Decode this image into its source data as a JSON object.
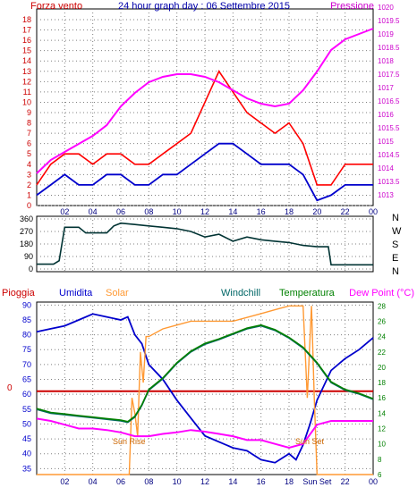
{
  "colors": {
    "wind": "#ff0000",
    "gust": "#0000cc",
    "pressure": "#ff00ff",
    "direction": "#003333",
    "rain": "#cc0000",
    "humidity": "#0000cc",
    "solar": "#ff9933",
    "windchill": "#006666",
    "temperature": "#008000",
    "dewpoint": "#ff00ff",
    "grid": "#808080"
  },
  "chart_data": [
    {
      "type": "line",
      "title": "24 hour graph day : 06 Settembre 2015",
      "left_label": "Forza vento",
      "right_label": "Pressione",
      "x_ticks": [
        "02",
        "04",
        "06",
        "08",
        "10",
        "12",
        "14",
        "16",
        "18",
        "20",
        "22",
        "00"
      ],
      "y_left_ticks": [
        "0",
        "1",
        "2",
        "3",
        "4",
        "5",
        "6",
        "7",
        "8",
        "9",
        "10",
        "11",
        "12",
        "13",
        "14",
        "15",
        "16",
        "17",
        "18"
      ],
      "y_right_ticks": [
        "1013",
        "1013.5",
        "1014",
        "1014.5",
        "1015",
        "1015.5",
        "1016",
        "1016.5",
        "1017",
        "1017.5",
        "1018",
        "1018.5",
        "1019",
        "1019.5",
        "1020"
      ],
      "xlim": [
        0,
        24
      ],
      "ylim_left": [
        0,
        18
      ],
      "ylim_right": [
        1013,
        1020
      ],
      "grid": true,
      "series": [
        {
          "name": "Forza vento",
          "axis": "left",
          "x": [
            0,
            1,
            2,
            3,
            4,
            5,
            6,
            7,
            8,
            9,
            10,
            11,
            12,
            13,
            14,
            15,
            16,
            17,
            18,
            19,
            20,
            21,
            22,
            23,
            24
          ],
          "values": [
            2,
            4,
            5,
            5,
            4,
            5,
            5,
            4,
            4,
            5,
            6,
            7,
            10,
            13,
            11,
            9,
            8,
            7,
            8,
            6,
            2,
            2,
            4,
            4,
            4
          ]
        },
        {
          "axis": "left",
          "x": [
            0,
            1,
            2,
            3,
            4,
            5,
            6,
            7,
            8,
            9,
            10,
            11,
            12,
            13,
            14,
            15,
            16,
            17,
            18,
            19,
            20,
            21,
            22,
            23,
            24
          ],
          "values": [
            1,
            2,
            3,
            2,
            2,
            3,
            3,
            2,
            2,
            3,
            3,
            4,
            5,
            6,
            6,
            5,
            4,
            4,
            4,
            3,
            0.5,
            1,
            2,
            2,
            2
          ]
        },
        {
          "name": "Pressione",
          "axis": "right",
          "x": [
            0,
            1,
            2,
            3,
            4,
            5,
            6,
            7,
            8,
            9,
            10,
            11,
            12,
            13,
            14,
            15,
            16,
            17,
            18,
            19,
            20,
            21,
            22,
            23,
            24
          ],
          "values": [
            1013.8,
            1014.3,
            1014.6,
            1014.9,
            1015.2,
            1015.6,
            1016.3,
            1016.8,
            1017.2,
            1017.4,
            1017.5,
            1017.5,
            1017.4,
            1017.2,
            1016.9,
            1016.6,
            1016.4,
            1016.3,
            1016.4,
            1016.9,
            1017.6,
            1018.4,
            1018.8,
            1019.0,
            1019.2
          ]
        }
      ]
    },
    {
      "type": "line",
      "title": "",
      "compass_labels": [
        "N",
        "W",
        "S",
        "E",
        "N"
      ],
      "y_ticks": [
        "0",
        "90",
        "180",
        "270",
        "360"
      ],
      "ylim": [
        0,
        360
      ],
      "xlim": [
        0,
        24
      ],
      "grid": true,
      "series": [
        {
          "axis": "left",
          "x": [
            0,
            1.2,
            1.6,
            2,
            3,
            3.5,
            4,
            5,
            5.5,
            6,
            7,
            8,
            9,
            10,
            11,
            12,
            13,
            14,
            15,
            16,
            17,
            18,
            19,
            20,
            20.8,
            21,
            22,
            23,
            24
          ],
          "values": [
            35,
            35,
            60,
            300,
            300,
            260,
            260,
            260,
            310,
            330,
            320,
            310,
            300,
            290,
            270,
            230,
            250,
            200,
            230,
            210,
            200,
            190,
            170,
            160,
            160,
            30,
            30,
            30,
            30
          ]
        }
      ]
    },
    {
      "type": "line",
      "title": "",
      "legend": [
        "Pioggia",
        "Umidita",
        "Solar",
        "Windchill",
        "Temperatura",
        "Dew Point (°C)"
      ],
      "x_ticks": [
        "02",
        "04",
        "06",
        "08",
        "10",
        "12",
        "14",
        "16",
        "18",
        "Sun Set",
        "22",
        "00"
      ],
      "y_left_ticks": [
        "35",
        "40",
        "45",
        "50",
        "55",
        "60",
        "65",
        "70",
        "75",
        "80",
        "85",
        "90"
      ],
      "y_right_ticks": [
        "6",
        "8",
        "10",
        "12",
        "14",
        "16",
        "18",
        "20",
        "22",
        "24",
        "26",
        "28"
      ],
      "rain_tick": "0",
      "annotations": [
        "Sun Rise",
        "Sun Set"
      ],
      "xlim": [
        0,
        24
      ],
      "ylim_left": [
        33,
        91
      ],
      "ylim_right": [
        6,
        28.5
      ],
      "grid": true,
      "series": [
        {
          "name": "Pioggia",
          "axis": "left",
          "x": [
            0,
            24
          ],
          "values": [
            61,
            61
          ]
        },
        {
          "name": "Umidita",
          "axis": "left",
          "x": [
            0,
            1,
            2,
            3,
            4,
            5,
            6,
            6.5,
            7,
            7.5,
            8,
            9,
            10,
            11,
            12,
            13,
            14,
            15,
            16,
            17,
            18,
            18.5,
            19,
            19.5,
            20,
            21,
            22,
            23,
            24
          ],
          "values": [
            81,
            82,
            83,
            85,
            87,
            86,
            85,
            86,
            80,
            77,
            70,
            65,
            58,
            52,
            46,
            44,
            42,
            41,
            38,
            37,
            40,
            38,
            43,
            50,
            58,
            68,
            72,
            75,
            79
          ]
        },
        {
          "name": "Solar",
          "axis": "right",
          "x": [
            0,
            6.6,
            6.8,
            7,
            7.2,
            7.4,
            7.6,
            7.8,
            8,
            9,
            10,
            11,
            12,
            13,
            14,
            15,
            16,
            17,
            18,
            18.5,
            19,
            19.3,
            19.6,
            19.8,
            20,
            24
          ],
          "values": [
            6,
            6,
            16,
            14,
            11,
            22,
            18,
            24,
            24,
            25,
            25.5,
            26,
            26,
            26,
            26,
            26.5,
            27,
            27.5,
            28,
            28,
            28,
            16,
            28,
            16,
            6,
            6
          ]
        },
        {
          "name": "Windchill",
          "axis": "right",
          "x": [
            0,
            1,
            2,
            3,
            4,
            5,
            6,
            6.5,
            7,
            7.5,
            8,
            9,
            10,
            11,
            12,
            13,
            14,
            15,
            16,
            17,
            18,
            19,
            20,
            21,
            22,
            23,
            24
          ],
          "values": [
            14.5,
            14,
            13.8,
            13.6,
            13.4,
            13.2,
            13,
            12.8,
            13.5,
            15,
            17,
            18.5,
            20.5,
            22,
            23,
            23.6,
            24.3,
            25,
            25.4,
            24.8,
            23.8,
            22.5,
            20.5,
            18,
            17,
            16.5,
            15.8
          ]
        },
        {
          "name": "Temperatura",
          "axis": "right",
          "x": [
            0,
            1,
            2,
            3,
            4,
            5,
            6,
            6.5,
            7,
            7.5,
            8,
            9,
            10,
            11,
            12,
            13,
            14,
            15,
            16,
            17,
            18,
            19,
            20,
            21,
            22,
            23,
            24
          ],
          "values": [
            14.6,
            14.1,
            13.9,
            13.7,
            13.5,
            13.3,
            13.1,
            12.9,
            13.6,
            15.1,
            17.1,
            18.6,
            20.6,
            22.1,
            23.1,
            23.7,
            24.4,
            25.1,
            25.5,
            24.9,
            23.9,
            22.6,
            20.6,
            18.1,
            17.1,
            16.6,
            15.9
          ]
        },
        {
          "name": "Dew Point (°C)",
          "axis": "right",
          "x": [
            0,
            1,
            2,
            3,
            4,
            5,
            6,
            7,
            8,
            9,
            10,
            11,
            12,
            13,
            14,
            15,
            16,
            17,
            18,
            19,
            20,
            21,
            22,
            23,
            24
          ],
          "values": [
            13.3,
            13,
            12.5,
            12,
            12,
            11.8,
            11.5,
            11,
            11,
            11.3,
            11.5,
            11.8,
            11.6,
            11.3,
            11,
            10.5,
            10.5,
            10,
            9.5,
            10,
            12.5,
            13,
            13,
            13,
            13
          ]
        }
      ]
    }
  ]
}
